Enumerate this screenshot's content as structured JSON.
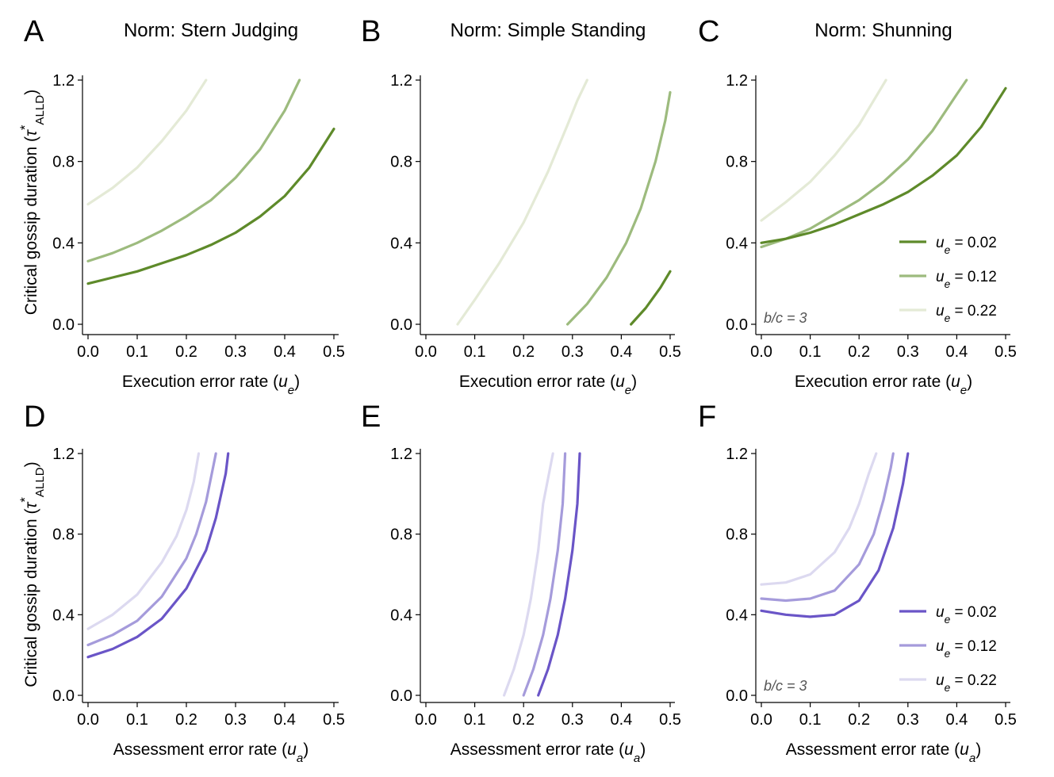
{
  "ylabel_row": "Critical gossip duration (τ*ALLD)",
  "ylabel": {
    "main": "Critical gossip duration (",
    "tau": "τ",
    "star": "*",
    "sub": "ALLD",
    "close": ")"
  },
  "xlabel_top": {
    "main": "Execution error rate (",
    "var": "u",
    "sub": "e",
    "close": ")"
  },
  "xlabel_bottom": {
    "main": "Assessment error rate (",
    "var": "u",
    "sub": "a",
    "close": ")"
  },
  "x_ticks": [
    "0.0",
    "0.1",
    "0.2",
    "0.3",
    "0.4",
    "0.5"
  ],
  "y_ticks": [
    "0.0",
    "0.4",
    "0.8",
    "1.2"
  ],
  "bc_note": {
    "var": "b/c",
    "rest": " = 3"
  },
  "legend_labels": [
    {
      "var": "u",
      "sub": "e",
      "value": " = 0.02"
    },
    {
      "var": "u",
      "sub": "e",
      "value": " = 0.12"
    },
    {
      "var": "u",
      "sub": "e",
      "value": " = 0.22"
    }
  ],
  "colors": {
    "green": [
      "#5e8a2a",
      "#9dbb7e",
      "#e4ead6"
    ],
    "purple": [
      "#6a55c7",
      "#a59bdb",
      "#dcd9f0"
    ]
  },
  "chart_data": [
    {
      "type": "line",
      "panel": "A",
      "title": "Norm: Stern Judging",
      "xlabel": "Execution error rate (ue)",
      "ylabel": "Critical gossip duration (τ*ALLD)",
      "xlim": [
        0,
        0.5
      ],
      "ylim": [
        0,
        1.2
      ],
      "color_group": "green",
      "series": [
        {
          "name": "ue = 0.02",
          "x": [
            0,
            0.05,
            0.1,
            0.15,
            0.2,
            0.25,
            0.3,
            0.35,
            0.4,
            0.45,
            0.5
          ],
          "y": [
            0.2,
            0.23,
            0.26,
            0.3,
            0.34,
            0.39,
            0.45,
            0.53,
            0.63,
            0.77,
            0.96
          ]
        },
        {
          "name": "ue = 0.12",
          "x": [
            0,
            0.05,
            0.1,
            0.15,
            0.2,
            0.25,
            0.3,
            0.35,
            0.4,
            0.43
          ],
          "y": [
            0.31,
            0.35,
            0.4,
            0.46,
            0.53,
            0.61,
            0.72,
            0.86,
            1.05,
            1.2
          ]
        },
        {
          "name": "ue = 0.22",
          "x": [
            0,
            0.05,
            0.1,
            0.15,
            0.2,
            0.24
          ],
          "y": [
            0.59,
            0.67,
            0.77,
            0.9,
            1.05,
            1.2
          ]
        }
      ]
    },
    {
      "type": "line",
      "panel": "B",
      "title": "Norm: Simple Standing",
      "xlabel": "Execution error rate (ue)",
      "ylabel": "",
      "xlim": [
        0,
        0.5
      ],
      "ylim": [
        0,
        1.2
      ],
      "color_group": "green",
      "series": [
        {
          "name": "ue = 0.02",
          "x": [
            0.42,
            0.45,
            0.48,
            0.5
          ],
          "y": [
            0,
            0.08,
            0.18,
            0.26
          ]
        },
        {
          "name": "ue = 0.12",
          "x": [
            0.29,
            0.33,
            0.37,
            0.41,
            0.44,
            0.47,
            0.49,
            0.5
          ],
          "y": [
            0,
            0.1,
            0.23,
            0.4,
            0.57,
            0.8,
            1.0,
            1.14
          ]
        },
        {
          "name": "ue = 0.22",
          "x": [
            0.065,
            0.1,
            0.15,
            0.2,
            0.25,
            0.29,
            0.31,
            0.33
          ],
          "y": [
            0,
            0.12,
            0.3,
            0.5,
            0.75,
            0.98,
            1.1,
            1.2
          ]
        }
      ]
    },
    {
      "type": "line",
      "panel": "C",
      "title": "Norm: Shunning",
      "xlabel": "Execution error rate (ue)",
      "ylabel": "",
      "xlim": [
        0,
        0.5
      ],
      "ylim": [
        0,
        1.2
      ],
      "color_group": "green",
      "legend": "right",
      "annotation": "b/c = 3",
      "series": [
        {
          "name": "ue = 0.02",
          "x": [
            0,
            0.05,
            0.1,
            0.15,
            0.2,
            0.25,
            0.3,
            0.35,
            0.4,
            0.45,
            0.5
          ],
          "y": [
            0.4,
            0.42,
            0.45,
            0.49,
            0.54,
            0.59,
            0.65,
            0.73,
            0.83,
            0.97,
            1.16
          ]
        },
        {
          "name": "ue = 0.12",
          "x": [
            0,
            0.05,
            0.1,
            0.15,
            0.2,
            0.25,
            0.3,
            0.35,
            0.4,
            0.42
          ],
          "y": [
            0.38,
            0.42,
            0.47,
            0.54,
            0.61,
            0.7,
            0.81,
            0.95,
            1.13,
            1.2
          ]
        },
        {
          "name": "ue = 0.22",
          "x": [
            0,
            0.05,
            0.1,
            0.15,
            0.2,
            0.255
          ],
          "y": [
            0.51,
            0.6,
            0.7,
            0.83,
            0.98,
            1.2
          ]
        }
      ]
    },
    {
      "type": "line",
      "panel": "D",
      "title": "",
      "xlabel": "Assessment error rate (ua)",
      "ylabel": "Critical gossip duration (τ*ALLD)",
      "xlim": [
        0,
        0.5
      ],
      "ylim": [
        0,
        1.2
      ],
      "color_group": "purple",
      "series": [
        {
          "name": "ue = 0.02",
          "x": [
            0,
            0.05,
            0.1,
            0.15,
            0.2,
            0.24,
            0.26,
            0.28,
            0.285
          ],
          "y": [
            0.19,
            0.23,
            0.29,
            0.38,
            0.53,
            0.72,
            0.88,
            1.1,
            1.2
          ]
        },
        {
          "name": "ue = 0.12",
          "x": [
            0,
            0.05,
            0.1,
            0.15,
            0.2,
            0.22,
            0.24,
            0.255,
            0.26
          ],
          "y": [
            0.25,
            0.3,
            0.37,
            0.49,
            0.68,
            0.8,
            0.96,
            1.14,
            1.2
          ]
        },
        {
          "name": "ue = 0.22",
          "x": [
            0,
            0.05,
            0.1,
            0.15,
            0.18,
            0.2,
            0.215,
            0.225
          ],
          "y": [
            0.33,
            0.4,
            0.5,
            0.66,
            0.79,
            0.92,
            1.06,
            1.2
          ]
        }
      ]
    },
    {
      "type": "line",
      "panel": "E",
      "title": "",
      "xlabel": "Assessment error rate (ua)",
      "ylabel": "",
      "xlim": [
        0,
        0.5
      ],
      "ylim": [
        0,
        1.2
      ],
      "color_group": "purple",
      "series": [
        {
          "name": "ue = 0.02",
          "x": [
            0.23,
            0.25,
            0.27,
            0.285,
            0.3,
            0.31,
            0.315
          ],
          "y": [
            0,
            0.13,
            0.3,
            0.48,
            0.72,
            0.95,
            1.2
          ]
        },
        {
          "name": "ue = 0.12",
          "x": [
            0.2,
            0.22,
            0.24,
            0.255,
            0.27,
            0.28,
            0.285
          ],
          "y": [
            0,
            0.13,
            0.3,
            0.48,
            0.72,
            0.95,
            1.2
          ]
        },
        {
          "name": "ue = 0.22",
          "x": [
            0.16,
            0.18,
            0.2,
            0.215,
            0.23,
            0.24,
            0.26
          ],
          "y": [
            0,
            0.13,
            0.3,
            0.48,
            0.72,
            0.95,
            1.2
          ]
        }
      ]
    },
    {
      "type": "line",
      "panel": "F",
      "title": "",
      "xlabel": "Assessment error rate (ua)",
      "ylabel": "",
      "xlim": [
        0,
        0.5
      ],
      "ylim": [
        0,
        1.2
      ],
      "color_group": "purple",
      "legend": "right",
      "annotation": "b/c = 3",
      "series": [
        {
          "name": "ue = 0.02",
          "x": [
            0,
            0.05,
            0.1,
            0.15,
            0.2,
            0.24,
            0.27,
            0.29,
            0.3
          ],
          "y": [
            0.42,
            0.4,
            0.39,
            0.4,
            0.47,
            0.62,
            0.83,
            1.05,
            1.2
          ]
        },
        {
          "name": "ue = 0.12",
          "x": [
            0,
            0.05,
            0.1,
            0.15,
            0.2,
            0.23,
            0.25,
            0.265,
            0.27
          ],
          "y": [
            0.48,
            0.47,
            0.48,
            0.52,
            0.65,
            0.8,
            0.97,
            1.13,
            1.2
          ]
        },
        {
          "name": "ue = 0.22",
          "x": [
            0,
            0.05,
            0.1,
            0.15,
            0.18,
            0.2,
            0.22,
            0.235
          ],
          "y": [
            0.55,
            0.56,
            0.6,
            0.71,
            0.83,
            0.95,
            1.1,
            1.2
          ]
        }
      ]
    }
  ]
}
